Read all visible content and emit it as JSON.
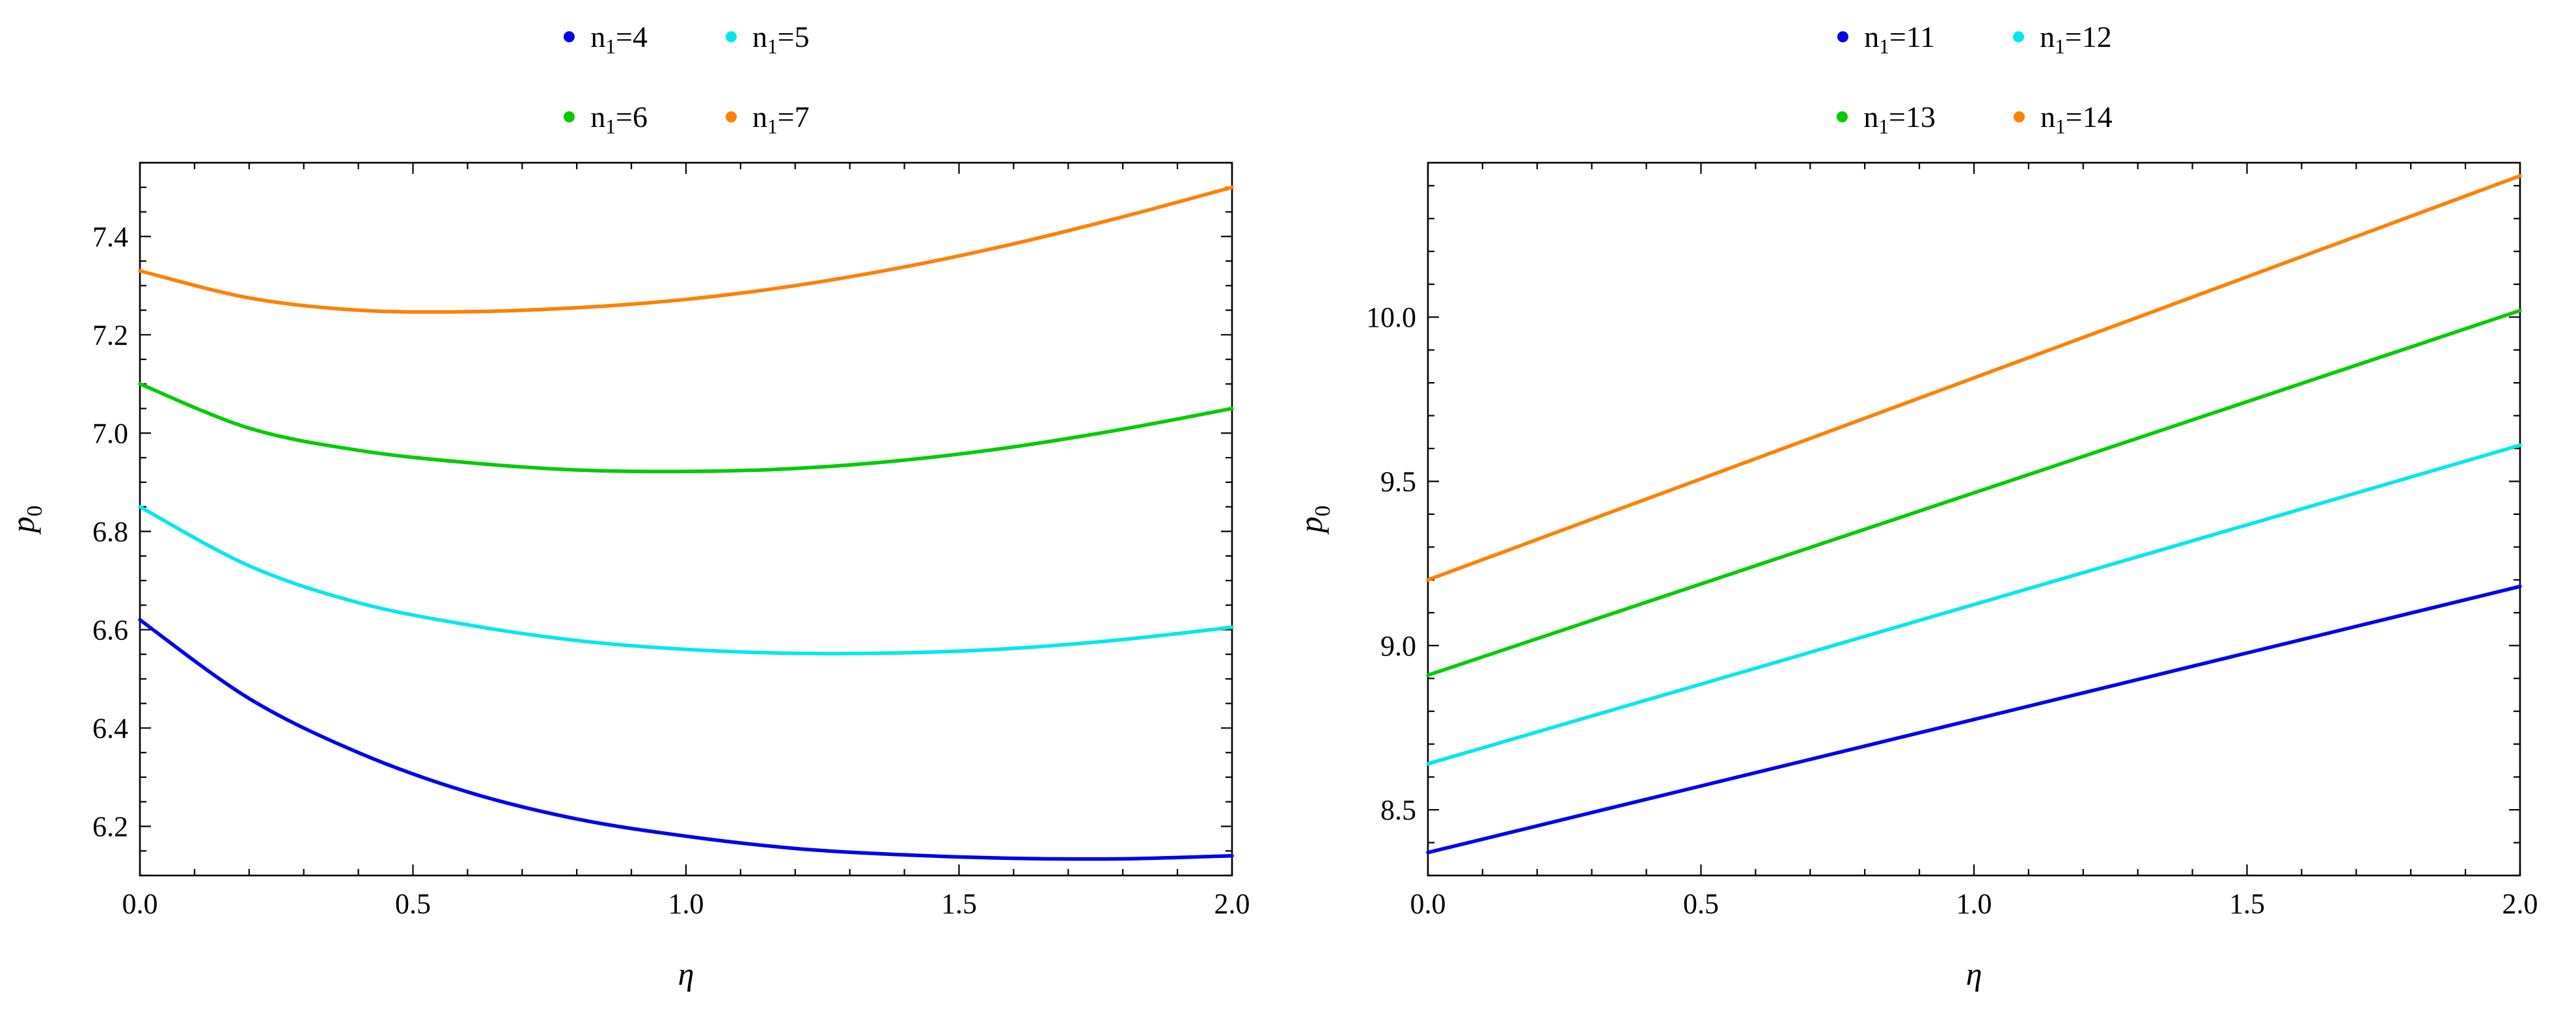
{
  "page": {
    "background": "#ffffff"
  },
  "chart_data": [
    {
      "id": "left-plot",
      "type": "line",
      "title": "",
      "xlabel": "η",
      "ylabel": {
        "var": "p",
        "sub": "0"
      },
      "xlim": [
        0,
        2
      ],
      "ylim": [
        6.1,
        7.55
      ],
      "xticks": [
        0.0,
        0.5,
        1.0,
        1.5,
        2.0
      ],
      "xtick_labels": [
        "0.0",
        "0.5",
        "1.0",
        "1.5",
        "2.0"
      ],
      "yticks": [
        6.2,
        6.4,
        6.6,
        6.8,
        7.0,
        7.2,
        7.4
      ],
      "ytick_labels": [
        "6.2",
        "6.4",
        "6.6",
        "6.8",
        "7.0",
        "7.2",
        "7.4"
      ],
      "x_minor_step": 0.1,
      "y_minor_step": 0.05,
      "grid": false,
      "legend_position": "above-center",
      "legend_rows": [
        [
          0,
          1
        ],
        [
          2,
          3
        ]
      ],
      "x": [
        0.0,
        0.2,
        0.4,
        0.6,
        0.8,
        1.0,
        1.2,
        1.4,
        1.6,
        1.8,
        2.0
      ],
      "series": [
        {
          "id": "n1-4",
          "name": "n1=4",
          "label": {
            "var": "n",
            "sub": "1",
            "rest": "=4"
          },
          "color": "#0000ee",
          "y": [
            6.62,
            6.46,
            6.35,
            6.27,
            6.215,
            6.18,
            6.155,
            6.142,
            6.135,
            6.134,
            6.14
          ]
        },
        {
          "id": "n1-5",
          "name": "n1=5",
          "label": {
            "var": "n",
            "sub": "1",
            "rest": "=5"
          },
          "color": "#00e8ee",
          "y": [
            6.85,
            6.73,
            6.655,
            6.61,
            6.578,
            6.56,
            6.552,
            6.553,
            6.562,
            6.58,
            6.605
          ]
        },
        {
          "id": "n1-6",
          "name": "n1=6",
          "label": {
            "var": "n",
            "sub": "1",
            "rest": "=6"
          },
          "color": "#00cc00",
          "y": [
            7.1,
            7.01,
            6.965,
            6.94,
            6.925,
            6.922,
            6.928,
            6.945,
            6.972,
            7.008,
            7.05
          ]
        },
        {
          "id": "n1-7",
          "name": "n1=7",
          "label": {
            "var": "n",
            "sub": "1",
            "rest": "=7"
          },
          "color": "#ff8000",
          "y": [
            7.33,
            7.275,
            7.25,
            7.247,
            7.255,
            7.272,
            7.3,
            7.338,
            7.385,
            7.44,
            7.5
          ]
        }
      ]
    },
    {
      "id": "right-plot",
      "type": "line",
      "title": "",
      "xlabel": "η",
      "ylabel": {
        "var": "p",
        "sub": "0"
      },
      "xlim": [
        0,
        2
      ],
      "ylim": [
        8.3,
        10.47
      ],
      "xticks": [
        0.0,
        0.5,
        1.0,
        1.5,
        2.0
      ],
      "xtick_labels": [
        "0.0",
        "0.5",
        "1.0",
        "1.5",
        "2.0"
      ],
      "yticks": [
        8.5,
        9.0,
        9.5,
        10.0
      ],
      "ytick_labels": [
        "8.5",
        "9.0",
        "9.5",
        "10.0"
      ],
      "x_minor_step": 0.1,
      "y_minor_step": 0.1,
      "grid": false,
      "legend_position": "above-center",
      "legend_rows": [
        [
          0,
          1
        ],
        [
          2,
          3
        ]
      ],
      "x": [
        0.0,
        0.2,
        0.4,
        0.6,
        0.8,
        1.0,
        1.2,
        1.4,
        1.6,
        1.8,
        2.0
      ],
      "series": [
        {
          "id": "n1-11",
          "name": "n1=11",
          "label": {
            "var": "n",
            "sub": "1",
            "rest": "=11"
          },
          "color": "#0000ee",
          "y": [
            8.37,
            8.451,
            8.532,
            8.613,
            8.694,
            8.775,
            8.856,
            8.937,
            9.018,
            9.099,
            9.18
          ]
        },
        {
          "id": "n1-12",
          "name": "n1=12",
          "label": {
            "var": "n",
            "sub": "1",
            "rest": "=12"
          },
          "color": "#00e8ee",
          "y": [
            8.64,
            8.737,
            8.834,
            8.931,
            9.028,
            9.125,
            9.222,
            9.319,
            9.416,
            9.513,
            9.61
          ]
        },
        {
          "id": "n1-13",
          "name": "n1=13",
          "label": {
            "var": "n",
            "sub": "1",
            "rest": "=13"
          },
          "color": "#00cc00",
          "y": [
            8.91,
            9.021,
            9.132,
            9.243,
            9.354,
            9.465,
            9.576,
            9.687,
            9.798,
            9.909,
            10.02
          ]
        },
        {
          "id": "n1-14",
          "name": "n1=14",
          "label": {
            "var": "n",
            "sub": "1",
            "rest": "=14"
          },
          "color": "#ff8000",
          "y": [
            9.2,
            9.323,
            9.446,
            9.569,
            9.692,
            9.815,
            9.938,
            10.061,
            10.184,
            10.307,
            10.43
          ]
        }
      ]
    }
  ]
}
